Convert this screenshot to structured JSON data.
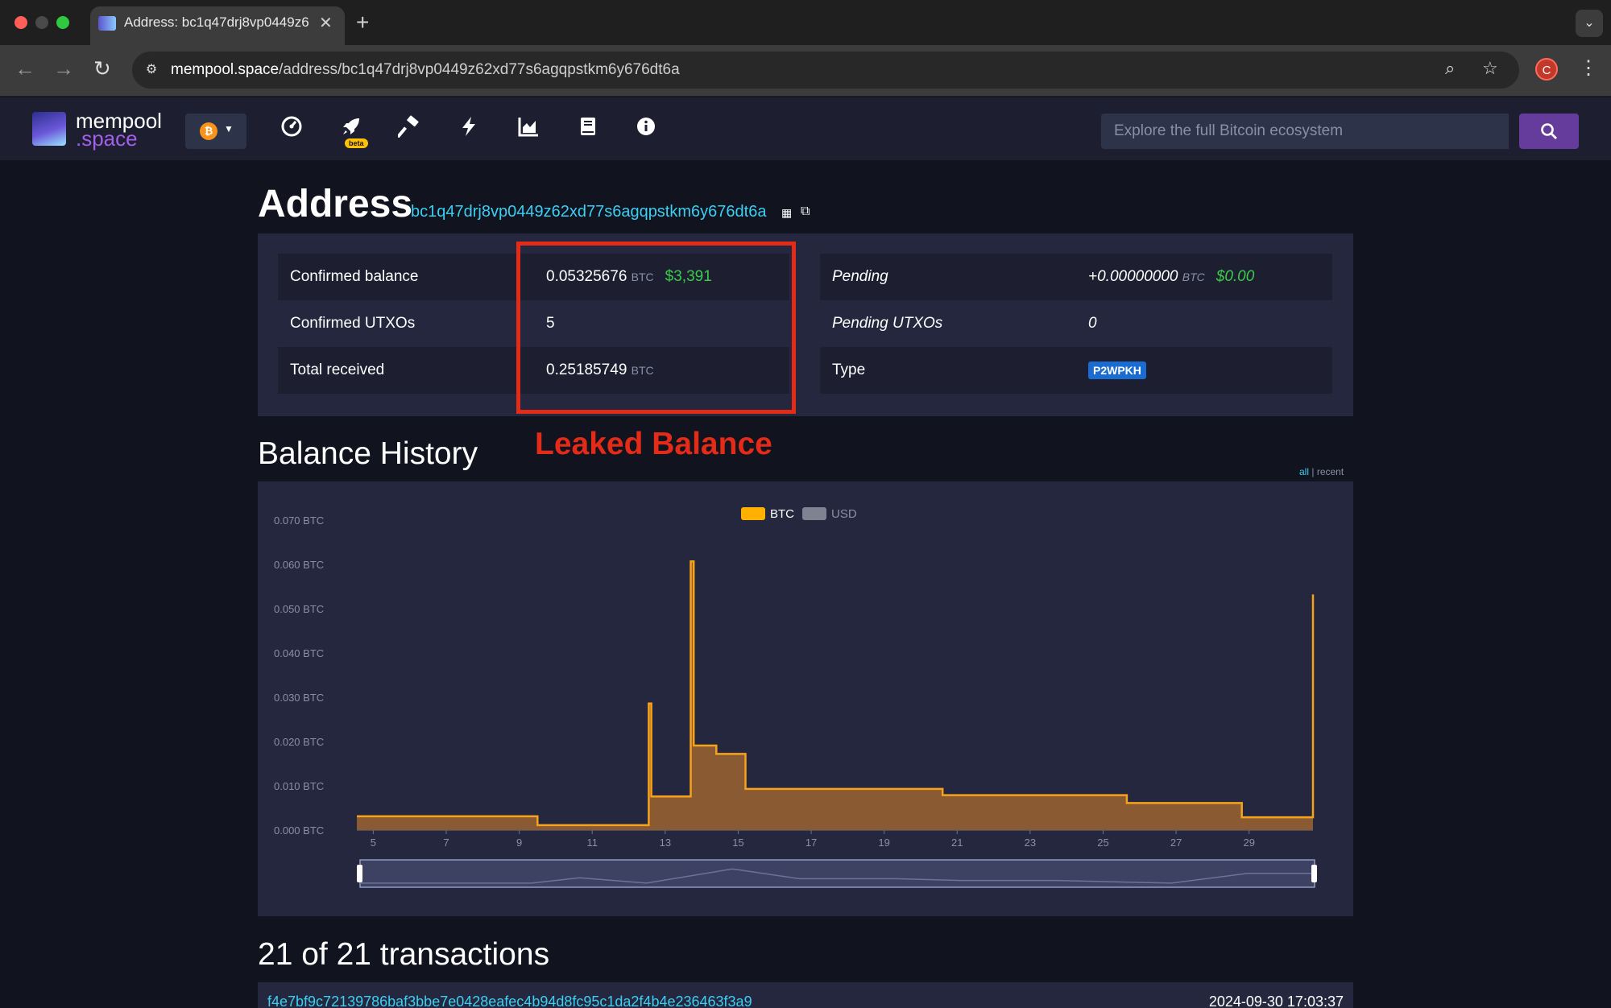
{
  "browser": {
    "tab_title": "Address: bc1q47drj8vp0449z62xd77s6agqpstkm6y676dt6a",
    "url_host": "mempool.space",
    "url_path": "/address/bc1q47drj8vp0449z62xd77s6agqpstkm6y676dt6a",
    "profile_initial": "C"
  },
  "header": {
    "logo_line1": "mempool",
    "logo_line2": ".space",
    "beta_label": "beta",
    "search_placeholder": "Explore the full Bitcoin ecosystem",
    "nav_icons": [
      "dashboard-icon",
      "rocket-icon",
      "hammer-icon",
      "lightning-icon",
      "graphs-icon",
      "docs-icon",
      "about-icon"
    ]
  },
  "address_page": {
    "title": "Address",
    "address": "bc1q47drj8vp0449z62xd77s6agqpstkm6y676dt6a"
  },
  "summary": {
    "confirmed_balance_label": "Confirmed balance",
    "confirmed_balance_btc": "0.05325676",
    "confirmed_balance_unit": "BTC",
    "confirmed_balance_usd": "$3,391",
    "confirmed_utxos_label": "Confirmed UTXOs",
    "confirmed_utxos_value": "5",
    "total_received_label": "Total received",
    "total_received_btc": "0.25185749",
    "total_received_unit": "BTC",
    "pending_label": "Pending",
    "pending_btc": "+0.00000000",
    "pending_unit": "BTC",
    "pending_usd": "$0.00",
    "pending_utxos_label": "Pending UTXOs",
    "pending_utxos_value": "0",
    "type_label": "Type",
    "type_value": "P2WPKH"
  },
  "annotation": {
    "leaked_label": "Leaked Balance",
    "highlight_color": "#e32b18"
  },
  "balance_history": {
    "title": "Balance History",
    "range_all": "all",
    "range_sep": "|",
    "range_recent": "recent"
  },
  "chart_data": {
    "type": "area",
    "title": "",
    "xlabel": "",
    "ylabel": "",
    "ylim": [
      0,
      0.07
    ],
    "yticks": [
      "0.000 BTC",
      "0.010 BTC",
      "0.020 BTC",
      "0.030 BTC",
      "0.040 BTC",
      "0.050 BTC",
      "0.060 BTC",
      "0.070 BTC"
    ],
    "xticks": [
      "5",
      "7",
      "9",
      "11",
      "13",
      "15",
      "17",
      "19",
      "21",
      "23",
      "25",
      "27",
      "29"
    ],
    "xlim": [
      4.55,
      30.75
    ],
    "step": true,
    "legend": [
      {
        "name": "BTC",
        "color": "#ffb000"
      },
      {
        "name": "USD",
        "color": "#7e8291"
      }
    ],
    "series": [
      {
        "name": "BTC",
        "color": "#f7a21b",
        "fill": "#8a5a32",
        "x": [
          4.55,
          9.5,
          11.9,
          12.55,
          12.62,
          13.7,
          13.78,
          14.4,
          15.2,
          20.6,
          25.65,
          28.8,
          30.7,
          30.75
        ],
        "y": [
          0.0031,
          0.0011,
          0.0011,
          0.0286,
          0.0076,
          0.0607,
          0.0191,
          0.0172,
          0.0093,
          0.0079,
          0.0061,
          0.0029,
          0.0029,
          0.0532
        ]
      }
    ],
    "navigator": true
  },
  "transactions": {
    "title": "21 of 21 transactions",
    "rows": [
      {
        "hash": "f4e7bf9c72139786baf3bbe7e0428eafec4b94d8fc95c1da2f4b4e236463f3a9",
        "time": "2024-09-30 17:03:37"
      }
    ]
  }
}
